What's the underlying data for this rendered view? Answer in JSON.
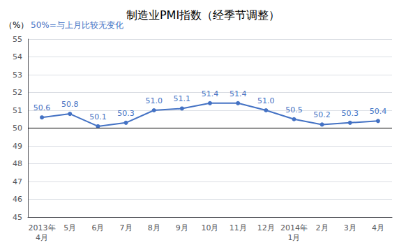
{
  "chart_data": {
    "type": "line",
    "title": "制造业PMI指数（经季节调整）",
    "ylabel": "（%）",
    "note": "50%=与上月比较无变化",
    "categories": [
      "2013年\n4月",
      "5月",
      "6月",
      "7月",
      "8月",
      "9月",
      "10月",
      "11月",
      "12月",
      "2014年\n1月",
      "2月",
      "3月",
      "4月"
    ],
    "values": [
      50.6,
      50.8,
      50.1,
      50.3,
      51.0,
      51.1,
      51.4,
      51.4,
      51.0,
      50.5,
      50.2,
      50.3,
      50.4
    ],
    "value_labels": [
      "50.6",
      "50.8",
      "50.1",
      "50.3",
      "51.0",
      "51.1",
      "51.4",
      "51.4",
      "51.0",
      "50.5",
      "50.2",
      "50.3",
      "50.4"
    ],
    "color": "#4472C4",
    "marker": "circle",
    "data_labels": true,
    "ylim": [
      45,
      55
    ],
    "yticks": [
      45,
      46,
      47,
      48,
      49,
      50,
      51,
      52,
      53,
      54,
      55
    ],
    "hline": {
      "y": 50,
      "color": "#000000"
    },
    "grid": true
  }
}
